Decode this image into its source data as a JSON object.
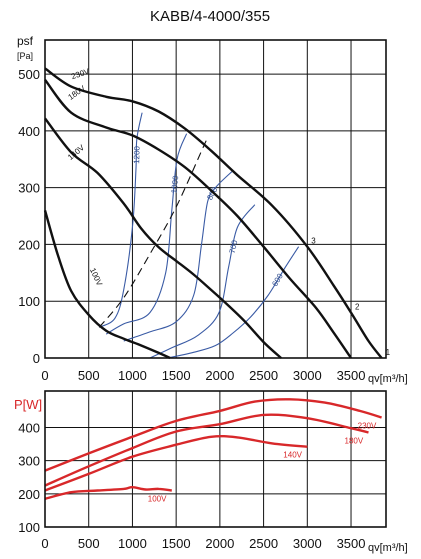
{
  "chart_data": [
    {
      "type": "line",
      "title": "KABB/4-4000/355",
      "ylabel": "psf",
      "yunit": "[Pa]",
      "xlabel": "qv[m³/h]",
      "xlim": [
        0,
        3900
      ],
      "ylim": [
        0,
        560
      ],
      "xticks": [
        0,
        500,
        1000,
        1500,
        2000,
        2500,
        3000,
        3500
      ],
      "yticks": [
        0,
        100,
        200,
        300,
        400,
        500
      ],
      "grid": true,
      "colors": {
        "fan_curves": "#111111",
        "iso_lines": "#3a5ba5",
        "dashed": "#111111"
      },
      "fan_curves": [
        {
          "name": "230V",
          "points": [
            [
              0,
              510
            ],
            [
              300,
              478
            ],
            [
              700,
              460
            ],
            [
              1000,
              452
            ],
            [
              1300,
              434
            ],
            [
              1600,
              404
            ],
            [
              1900,
              365
            ],
            [
              2200,
              322
            ],
            [
              2600,
              268
            ],
            [
              3000,
              196
            ],
            [
              3300,
              128
            ],
            [
              3500,
              80
            ],
            [
              3700,
              30
            ],
            [
              3850,
              0
            ]
          ]
        },
        {
          "name": "180V",
          "points": [
            [
              0,
              490
            ],
            [
              300,
              432
            ],
            [
              700,
              406
            ],
            [
              1000,
              392
            ],
            [
              1300,
              367
            ],
            [
              1600,
              336
            ],
            [
              1900,
              295
            ],
            [
              2200,
              250
            ],
            [
              2500,
              196
            ],
            [
              2800,
              140
            ],
            [
              3100,
              88
            ],
            [
              3300,
              45
            ],
            [
              3500,
              0
            ]
          ]
        },
        {
          "name": "140V",
          "points": [
            [
              0,
              422
            ],
            [
              300,
              362
            ],
            [
              600,
              326
            ],
            [
              900,
              272
            ],
            [
              1100,
              228
            ],
            [
              1300,
              195
            ],
            [
              1500,
              171
            ],
            [
              1700,
              147
            ],
            [
              1900,
              120
            ],
            [
              2100,
              92
            ],
            [
              2300,
              62
            ],
            [
              2500,
              28
            ],
            [
              2700,
              0
            ]
          ]
        },
        {
          "name": "100V",
          "points": [
            [
              0,
              260
            ],
            [
              150,
              180
            ],
            [
              300,
              118
            ],
            [
              500,
              76
            ],
            [
              700,
              48
            ],
            [
              900,
              34
            ],
            [
              1100,
              22
            ],
            [
              1300,
              9
            ],
            [
              1430,
              0
            ]
          ]
        }
      ],
      "curve_labels": [
        "1",
        "2",
        "3"
      ],
      "dashed_line": [
        [
          620,
          54
        ],
        [
          900,
          106
        ],
        [
          1200,
          183
        ],
        [
          1500,
          266
        ],
        [
          1800,
          368
        ],
        [
          1850,
          385
        ]
      ],
      "iso_lines": [
        {
          "name": "600",
          "points": [
            [
              1400,
              0
            ],
            [
              1700,
              10
            ],
            [
              1950,
              22
            ],
            [
              2150,
              44
            ],
            [
              2350,
              72
            ],
            [
              2550,
              110
            ],
            [
              2750,
              160
            ],
            [
              2900,
              196
            ]
          ]
        },
        {
          "name": "700",
          "points": [
            [
              1200,
              0
            ],
            [
              1450,
              18
            ],
            [
              1750,
              40
            ],
            [
              1990,
              80
            ],
            [
              2100,
              160
            ],
            [
              2200,
              230
            ],
            [
              2400,
              270
            ]
          ]
        },
        {
          "name": "800",
          "points": [
            [
              900,
              30
            ],
            [
              1200,
              46
            ],
            [
              1500,
              64
            ],
            [
              1700,
              110
            ],
            [
              1790,
              200
            ],
            [
              1860,
              275
            ],
            [
              1950,
              300
            ],
            [
              2150,
              330
            ]
          ]
        },
        {
          "name": "1000",
          "points": [
            [
              700,
              42
            ],
            [
              900,
              60
            ],
            [
              1200,
              80
            ],
            [
              1380,
              150
            ],
            [
              1450,
              260
            ],
            [
              1510,
              350
            ],
            [
              1620,
              395
            ]
          ]
        },
        {
          "name": "1200",
          "points": [
            [
              620,
              54
            ],
            [
              800,
              70
            ],
            [
              900,
              120
            ],
            [
              1000,
              230
            ],
            [
              1040,
              330
            ],
            [
              1050,
              385
            ],
            [
              1110,
              432
            ]
          ]
        }
      ]
    },
    {
      "type": "line",
      "ylabel": "P[W]",
      "xlabel": "qv[m³/h]",
      "xlim": [
        0,
        3900
      ],
      "ylim": [
        100,
        510
      ],
      "xticks": [
        0,
        500,
        1000,
        1500,
        2000,
        2500,
        3000,
        3500
      ],
      "yticks": [
        100,
        200,
        300,
        400
      ],
      "grid": true,
      "colors": {
        "series": "#d8282a"
      },
      "series": [
        {
          "name": "230V",
          "points": [
            [
              0,
              270
            ],
            [
              500,
              322
            ],
            [
              1000,
              372
            ],
            [
              1500,
              420
            ],
            [
              2000,
              450
            ],
            [
              2400,
              478
            ],
            [
              2800,
              485
            ],
            [
              3200,
              475
            ],
            [
              3600,
              450
            ],
            [
              3850,
              430
            ]
          ]
        },
        {
          "name": "180V",
          "points": [
            [
              0,
              225
            ],
            [
              500,
              283
            ],
            [
              1000,
              338
            ],
            [
              1500,
              388
            ],
            [
              2000,
              410
            ],
            [
              2500,
              438
            ],
            [
              3000,
              428
            ],
            [
              3500,
              398
            ],
            [
              3700,
              385
            ]
          ]
        },
        {
          "name": "140V",
          "points": [
            [
              0,
              210
            ],
            [
              500,
              260
            ],
            [
              1000,
              312
            ],
            [
              1500,
              348
            ],
            [
              1900,
              372
            ],
            [
              2200,
              370
            ],
            [
              2600,
              352
            ],
            [
              3000,
              342
            ]
          ]
        },
        {
          "name": "100V",
          "points": [
            [
              0,
              185
            ],
            [
              300,
              205
            ],
            [
              600,
              210
            ],
            [
              900,
              215
            ],
            [
              1000,
              220
            ],
            [
              1150,
              213
            ],
            [
              1300,
              215
            ],
            [
              1450,
              210
            ]
          ]
        }
      ]
    }
  ]
}
